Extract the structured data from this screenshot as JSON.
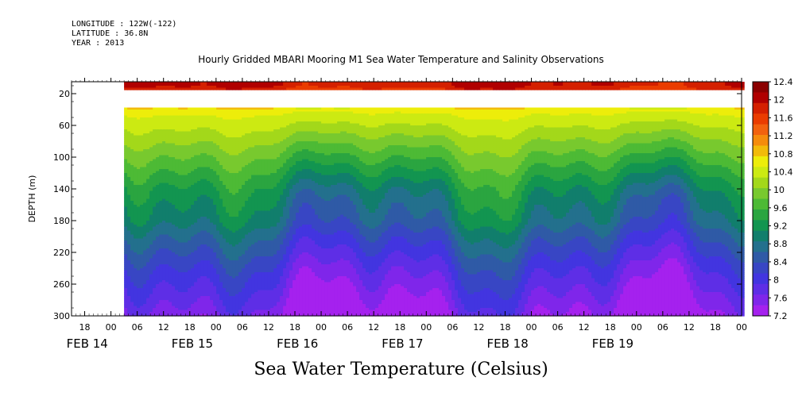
{
  "header": {
    "longitude": "LONGITUDE : 122W(-122)",
    "latitude": "LATITUDE : 36.8N",
    "year": "YEAR : 2013",
    "title": "Hourly Gridded MBARI Mooring M1 Sea Water Temperature and Salinity Observations"
  },
  "footer": {
    "label": "Sea Water Temperature (Celsius)"
  },
  "chart_data": {
    "type": "heatmap",
    "title": "Hourly Gridded MBARI Mooring M1 Sea Water Temperature and Salinity Observations",
    "xlabel": "",
    "ylabel": "DEPTH (m)",
    "x_start": "2013-02-13T15:00",
    "x_end": "2013-02-20T00:00",
    "x_tick_labels": [
      "18",
      "00",
      "06",
      "12",
      "18",
      "00",
      "06",
      "12",
      "18",
      "00",
      "06",
      "12",
      "18",
      "00",
      "06",
      "12",
      "18",
      "00",
      "06",
      "12",
      "18",
      "00",
      "06",
      "12",
      "18",
      "00"
    ],
    "date_labels": [
      "FEB 14",
      "FEB 15",
      "FEB 16",
      "FEB 17",
      "FEB 18",
      "FEB 19"
    ],
    "y_ticks": [
      20,
      60,
      100,
      140,
      180,
      220,
      260,
      300
    ],
    "ylim": [
      300,
      5
    ],
    "colorbar": {
      "label": "Sea Water Temperature (Celsius)",
      "ticks": [
        "12.4",
        "12",
        "11.6",
        "11.2",
        "10.8",
        "10.4",
        "10",
        "9.6",
        "9.2",
        "8.8",
        "8.4",
        "8",
        "7.6",
        "7.2"
      ],
      "colors": [
        "#8b0000",
        "#b00000",
        "#d42000",
        "#ea3c00",
        "#f2620e",
        "#f58c0c",
        "#f2bb0a",
        "#eded0a",
        "#ccea12",
        "#a3d81a",
        "#78c92e",
        "#4dba35",
        "#2aa540",
        "#129550",
        "#117e6c",
        "#23708d",
        "#2f5aa6",
        "#3846c4",
        "#4235e0",
        "#5e2ee6",
        "#7f26ea",
        "#a521ee"
      ],
      "min": 7.2,
      "max": 12.4
    },
    "profile": {
      "depth": [
        10,
        40,
        60,
        80,
        100,
        120,
        140,
        160,
        180,
        200,
        220,
        240,
        260,
        280,
        300
      ],
      "temperature": [
        11.9,
        10.6,
        10.3,
        10.0,
        9.7,
        9.4,
        9.1,
        8.9,
        8.75,
        8.45,
        8.2,
        7.95,
        7.75,
        7.55,
        7.35
      ]
    },
    "data_gap_depth": [
      15,
      38
    ],
    "data_start": "2013-02-14T03:00"
  }
}
